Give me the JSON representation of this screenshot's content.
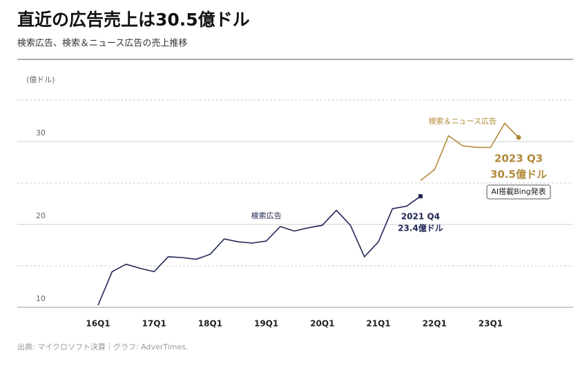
{
  "chart_data": {
    "type": "line",
    "title": "直近の広告売上は30.5億ドル",
    "subtitle": "検索広告、検索＆ニュース広告の売上推移",
    "y_label": "(億ドル)",
    "source": "出典: マイクロソフト決算｜グラフ: AdverTimes.",
    "categories": [
      "16Q1",
      null,
      null,
      null,
      "17Q1",
      null,
      null,
      null,
      "18Q1",
      null,
      null,
      null,
      "19Q1",
      null,
      null,
      null,
      "20Q1",
      null,
      null,
      null,
      "21Q1",
      null,
      null,
      null,
      "22Q1",
      null,
      null,
      null,
      "23Q1",
      null,
      null
    ],
    "series": [
      {
        "name": "検索広告",
        "color": "#1f2553",
        "values": [
          10.25,
          14.3,
          15.2,
          14.7,
          14.3,
          16.1,
          16.0,
          15.8,
          16.4,
          18.25,
          17.9,
          17.75,
          18.0,
          19.75,
          19.2,
          19.6,
          19.9,
          21.7,
          19.9,
          16.1,
          17.9,
          21.9,
          22.2,
          23.4,
          null,
          null,
          null,
          null,
          null,
          null,
          null
        ]
      },
      {
        "name": "検索＆ニュース広告",
        "color": "#b08a3a",
        "values": [
          null,
          null,
          null,
          null,
          null,
          null,
          null,
          null,
          null,
          null,
          null,
          null,
          null,
          null,
          null,
          null,
          null,
          null,
          null,
          null,
          null,
          null,
          null,
          25.3,
          26.6,
          30.7,
          29.5,
          29.3,
          29.3,
          32.2,
          30.5
        ]
      }
    ],
    "annotations": [
      {
        "lines": [
          "2021 Q4",
          "23.4億ドル"
        ]
      },
      {
        "lines": [
          "2023 Q3",
          "30.5億ドル"
        ]
      },
      {
        "lines": [
          "AI搭載Bing発表"
        ]
      }
    ],
    "ylim": [
      10,
      35
    ],
    "yticks": [
      10,
      20,
      30
    ],
    "minor_yticks": [
      15,
      25,
      35
    ],
    "grid": true
  }
}
